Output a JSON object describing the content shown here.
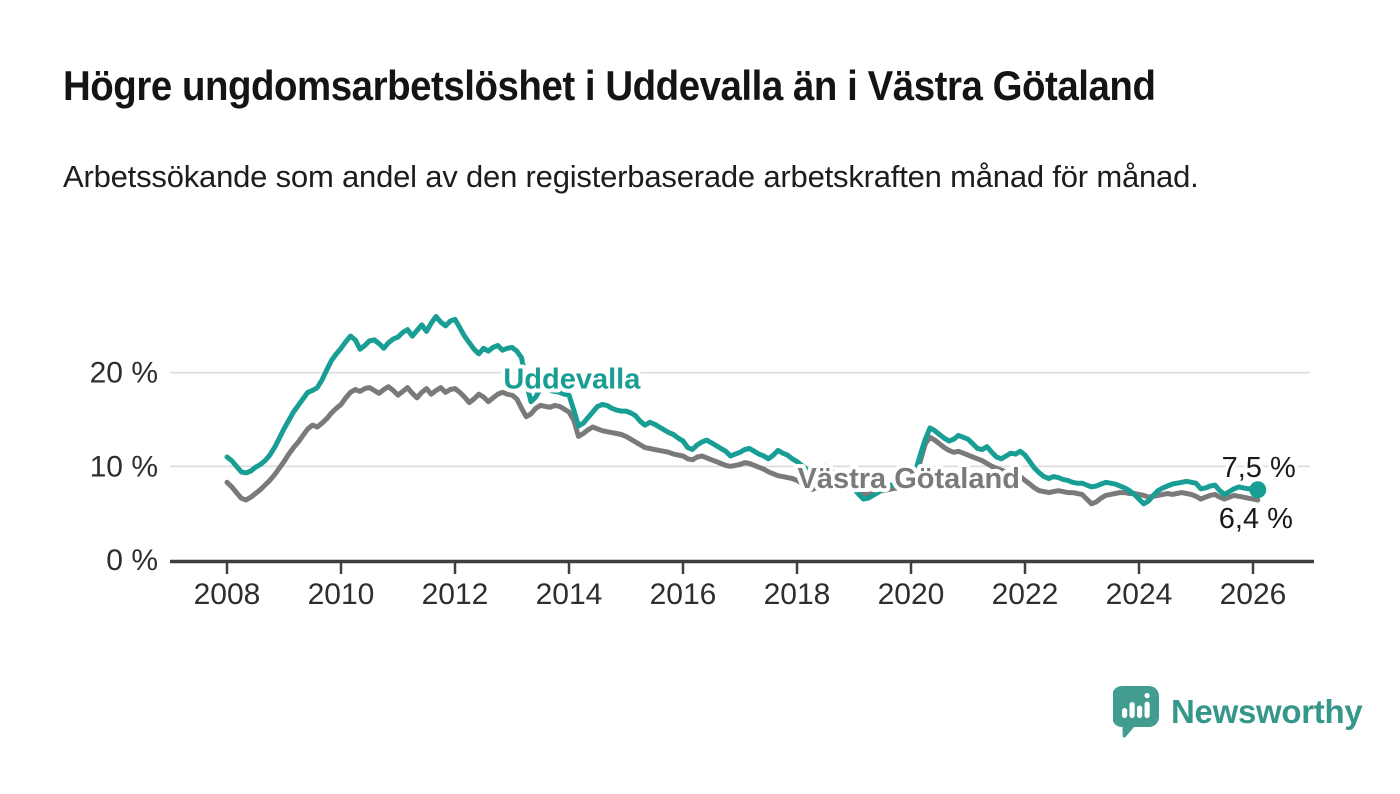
{
  "header": {
    "title": "Högre ungdomsarbetslöshet i Uddevalla än i Västra Götaland",
    "subtitle": "Arbetssökande som andel av den registerbaserade arbetskraften månad för månad."
  },
  "chart_data": {
    "type": "line",
    "unit": "%",
    "grid": "horizontal",
    "legend_position": "inline-labels",
    "xlim": [
      2007.0,
      2027.07
    ],
    "ylim": [
      0,
      27.5
    ],
    "x_ticks": [
      2008,
      2010,
      2012,
      2014,
      2016,
      2018,
      2020,
      2022,
      2024,
      2026
    ],
    "y_ticks": [
      {
        "value": 0,
        "label": "0 %"
      },
      {
        "value": 10,
        "label": "10 %"
      },
      {
        "value": 20,
        "label": "20 %"
      }
    ],
    "colors": {
      "uddevalla": "#189e94",
      "vastra_gotaland": "#7a7a7a",
      "axis": "#3f3f3f",
      "grid": "#dcdcdc",
      "tick_text": "#2e2e2e",
      "value_text": "#1a1a1a"
    },
    "series": [
      {
        "name": "Västra Götaland",
        "color": "#7a7a7a",
        "start_year": 2008,
        "points_per_year": 12,
        "end_label": "6,4 %",
        "end_dot": false,
        "label_pos": {
          "x": 2019.96,
          "y": 8.75
        },
        "end_label_pos": {
          "x": 2026.05,
          "y": 4.5
        },
        "values": [
          8.3,
          7.8,
          7.2,
          6.6,
          6.4,
          6.7,
          7.1,
          7.5,
          8.0,
          8.5,
          9.1,
          9.8,
          10.5,
          11.3,
          12.0,
          12.6,
          13.3,
          14.0,
          14.4,
          14.2,
          14.6,
          15.1,
          15.7,
          16.2,
          16.6,
          17.3,
          17.9,
          18.2,
          18.0,
          18.3,
          18.4,
          18.1,
          17.8,
          18.2,
          18.5,
          18.1,
          17.6,
          18.0,
          18.4,
          17.8,
          17.3,
          17.9,
          18.3,
          17.7,
          18.1,
          18.4,
          17.9,
          18.2,
          18.3,
          17.9,
          17.4,
          16.8,
          17.2,
          17.7,
          17.4,
          16.9,
          17.3,
          17.7,
          17.9,
          17.7,
          17.6,
          17.2,
          16.2,
          15.3,
          15.6,
          16.2,
          16.5,
          16.4,
          16.3,
          16.5,
          16.4,
          16.1,
          15.8,
          14.9,
          13.2,
          13.5,
          13.9,
          14.2,
          14.0,
          13.8,
          13.7,
          13.6,
          13.5,
          13.4,
          13.2,
          12.9,
          12.6,
          12.3,
          12.0,
          11.9,
          11.8,
          11.7,
          11.6,
          11.5,
          11.3,
          11.2,
          11.1,
          10.8,
          10.7,
          11.0,
          11.1,
          10.9,
          10.7,
          10.5,
          10.3,
          10.1,
          10.0,
          10.1,
          10.2,
          10.4,
          10.3,
          10.1,
          9.9,
          9.7,
          9.4,
          9.2,
          9.0,
          8.9,
          8.8,
          8.7,
          8.5,
          8.2,
          7.9,
          7.5,
          7.7,
          8.0,
          8.2,
          8.2,
          8.1,
          8.0,
          7.9,
          7.8,
          7.6,
          7.3,
          7.0,
          7.0,
          7.1,
          7.3,
          7.4,
          7.5,
          7.6,
          7.7,
          7.8,
          8.0,
          8.2,
          8.9,
          10.6,
          12.4,
          13.1,
          12.8,
          12.4,
          12.0,
          11.7,
          11.5,
          11.6,
          11.4,
          11.2,
          11.0,
          10.8,
          10.6,
          10.3,
          10.0,
          9.8,
          9.6,
          9.4,
          9.3,
          9.1,
          8.9,
          8.5,
          8.1,
          7.7,
          7.4,
          7.3,
          7.2,
          7.3,
          7.4,
          7.3,
          7.2,
          7.2,
          7.1,
          7.0,
          6.5,
          6.0,
          6.2,
          6.6,
          6.9,
          7.0,
          7.1,
          7.2,
          7.2,
          7.1,
          7.1,
          7.0,
          6.9,
          6.7,
          6.8,
          6.9,
          7.0,
          7.1,
          7.0,
          7.1,
          7.2,
          7.1,
          7.0,
          6.8,
          6.5,
          6.7,
          6.9,
          7.0,
          6.7,
          6.5,
          6.7,
          6.9,
          6.8,
          6.7,
          6.6,
          6.5,
          6.4
        ]
      },
      {
        "name": "Uddevalla",
        "color": "#189e94",
        "start_year": 2008,
        "points_per_year": 12,
        "end_label": "7,5 %",
        "end_dot": true,
        "label_pos": {
          "x": 2014.05,
          "y": 19.4
        },
        "end_label_pos": {
          "x": 2026.1,
          "y": 9.95
        },
        "values": [
          11.0,
          10.6,
          10.0,
          9.4,
          9.3,
          9.5,
          9.9,
          10.2,
          10.6,
          11.2,
          12.0,
          13.0,
          14.0,
          14.9,
          15.8,
          16.5,
          17.2,
          17.9,
          18.1,
          18.4,
          19.2,
          20.3,
          21.3,
          22.0,
          22.6,
          23.3,
          23.9,
          23.5,
          22.5,
          22.9,
          23.4,
          23.5,
          23.1,
          22.6,
          23.2,
          23.6,
          23.8,
          24.3,
          24.6,
          23.9,
          24.5,
          25.1,
          24.4,
          25.3,
          26.0,
          25.4,
          25.0,
          25.5,
          25.7,
          24.8,
          23.9,
          23.2,
          22.5,
          22.0,
          22.6,
          22.3,
          22.7,
          22.9,
          22.4,
          22.6,
          22.7,
          22.3,
          21.6,
          18.9,
          16.9,
          17.4,
          18.3,
          18.4,
          18.1,
          18.0,
          17.9,
          17.7,
          17.6,
          16.0,
          14.3,
          14.6,
          15.2,
          15.8,
          16.4,
          16.6,
          16.5,
          16.2,
          16.0,
          15.9,
          15.9,
          15.7,
          15.4,
          14.8,
          14.4,
          14.7,
          14.5,
          14.2,
          13.9,
          13.6,
          13.4,
          13.0,
          12.7,
          12.0,
          11.8,
          12.3,
          12.6,
          12.8,
          12.5,
          12.2,
          11.9,
          11.6,
          11.1,
          11.3,
          11.5,
          11.8,
          11.9,
          11.6,
          11.3,
          11.1,
          10.8,
          11.2,
          11.7,
          11.4,
          11.2,
          10.8,
          10.5,
          10.1,
          9.7,
          9.3,
          9.5,
          9.7,
          10.0,
          9.6,
          9.1,
          8.7,
          8.4,
          8.0,
          7.6,
          7.0,
          6.5,
          6.6,
          6.9,
          7.2,
          7.6,
          7.9,
          8.0,
          8.2,
          8.3,
          8.6,
          8.9,
          9.6,
          11.3,
          12.9,
          14.1,
          13.8,
          13.4,
          13.0,
          12.7,
          12.9,
          13.3,
          13.1,
          12.9,
          12.4,
          11.9,
          11.8,
          12.1,
          11.5,
          11.0,
          10.8,
          11.1,
          11.4,
          11.3,
          11.6,
          11.2,
          10.5,
          9.8,
          9.3,
          8.9,
          8.7,
          8.9,
          8.8,
          8.6,
          8.5,
          8.3,
          8.2,
          8.2,
          8.0,
          7.8,
          7.9,
          8.1,
          8.3,
          8.2,
          8.1,
          7.9,
          7.7,
          7.4,
          7.0,
          6.5,
          6.0,
          6.3,
          6.9,
          7.4,
          7.7,
          7.9,
          8.1,
          8.2,
          8.3,
          8.4,
          8.3,
          8.2,
          7.6,
          7.7,
          7.9,
          8.0,
          7.4,
          7.0,
          7.3,
          7.6,
          7.8,
          7.7,
          7.6,
          7.6,
          7.5
        ]
      }
    ]
  },
  "footer": {
    "brand": "Newsworthy",
    "brand_color": "#35978a",
    "logo_icon": "bar-chart-speech-bubble"
  }
}
